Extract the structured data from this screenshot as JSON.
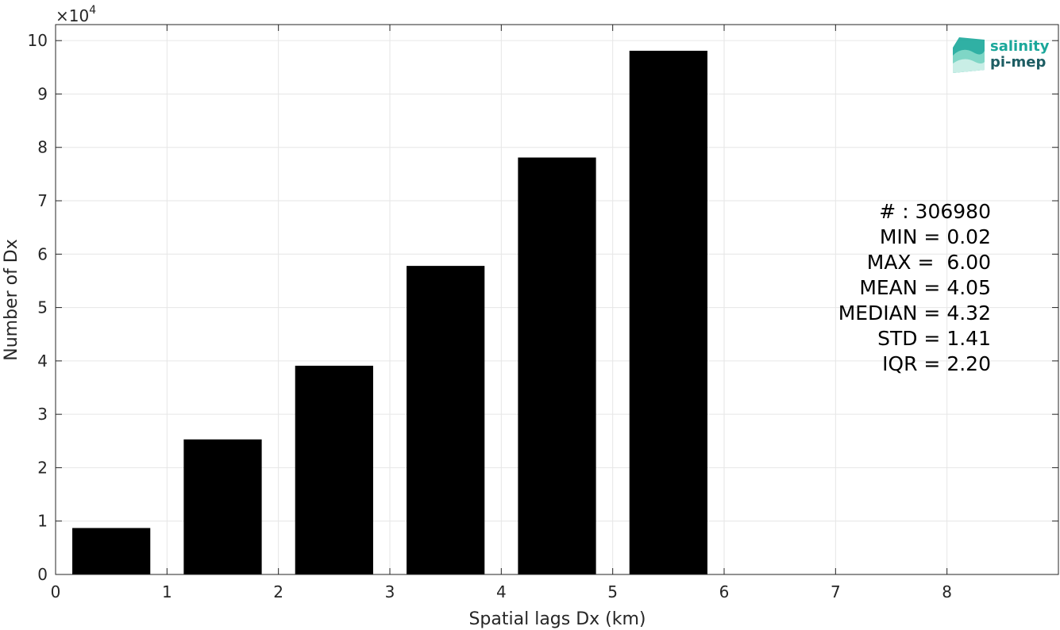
{
  "chart_data": {
    "type": "bar",
    "x": [
      0.5,
      1.5,
      2.5,
      3.5,
      4.5,
      5.5
    ],
    "values": [
      8700,
      25300,
      39100,
      57800,
      78100,
      98100
    ],
    "bar_color": "#000000",
    "xlabel": "Spatial lags Dx (km)",
    "ylabel": "Number of Dx",
    "xlim": [
      0,
      9
    ],
    "ylim": [
      0,
      103000
    ],
    "xticks": [
      0,
      1,
      2,
      3,
      4,
      5,
      6,
      7,
      8
    ],
    "xtick_labels": [
      "0",
      "1",
      "2",
      "3",
      "4",
      "5",
      "6",
      "7",
      "8"
    ],
    "yticks": [
      0,
      10000,
      20000,
      30000,
      40000,
      50000,
      60000,
      70000,
      80000,
      90000,
      100000
    ],
    "ytick_labels": [
      "0",
      "1",
      "2",
      "3",
      "4",
      "5",
      "6",
      "7",
      "8",
      "9",
      "10"
    ],
    "y_exponent_prefix": "×10",
    "y_exponent_power": "4",
    "grid": true,
    "stats": [
      "# : 306980",
      "MIN = 0.02",
      "MAX =  6.00",
      "MEAN = 4.05",
      "MEDIAN = 4.32",
      "STD = 1.41",
      "IQR = 2.20"
    ]
  },
  "logo": {
    "line1": "salinity",
    "line2": "pi-mep",
    "color1": "#1aa79a",
    "color2": "#1d5d63"
  },
  "colors": {
    "grid": "#e6e6e6",
    "axis": "#262626"
  }
}
